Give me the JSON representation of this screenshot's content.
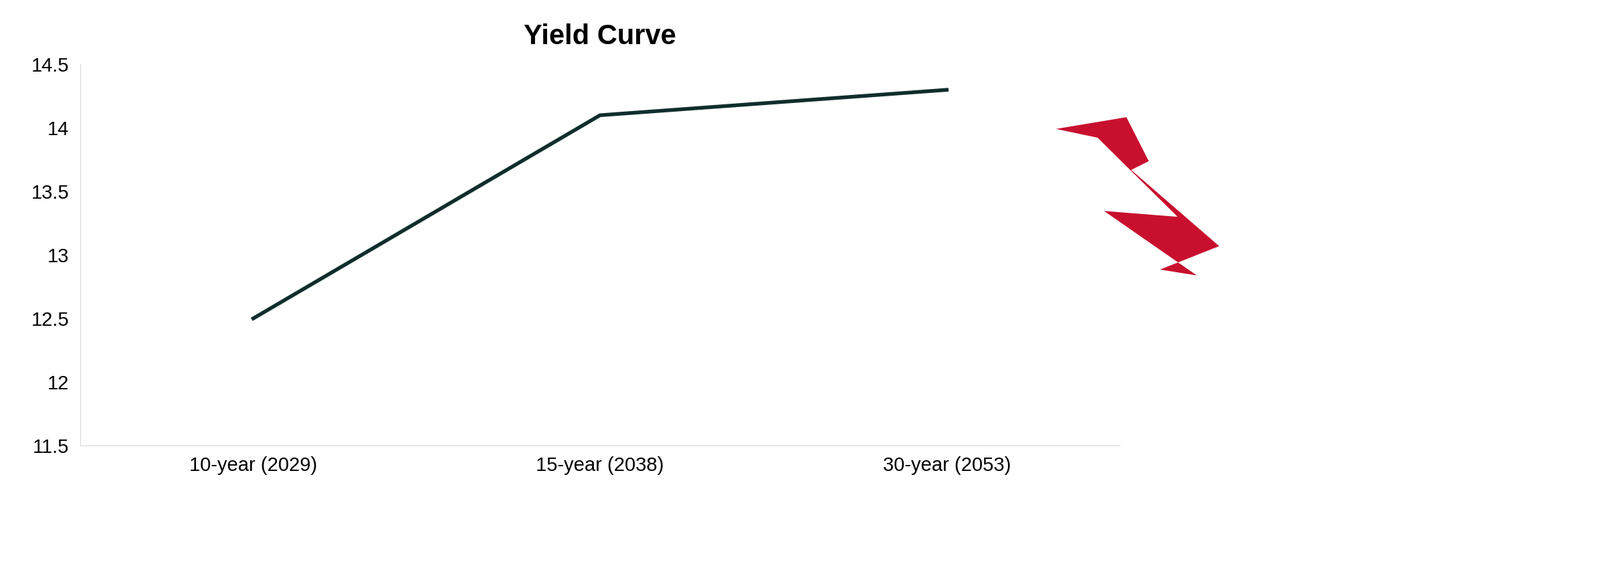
{
  "chart_data": {
    "type": "line",
    "title": "Yield Curve",
    "categories": [
      "10-year (2029)",
      "15-year (2038)",
      "30-year (2053)"
    ],
    "values": [
      12.5,
      14.1,
      14.3
    ],
    "color": "#0f2e2c",
    "ylim": [
      11.5,
      14.5
    ],
    "yticks": [
      11.5,
      12,
      12.5,
      13,
      13.5,
      14,
      14.5
    ],
    "grid": false
  }
}
